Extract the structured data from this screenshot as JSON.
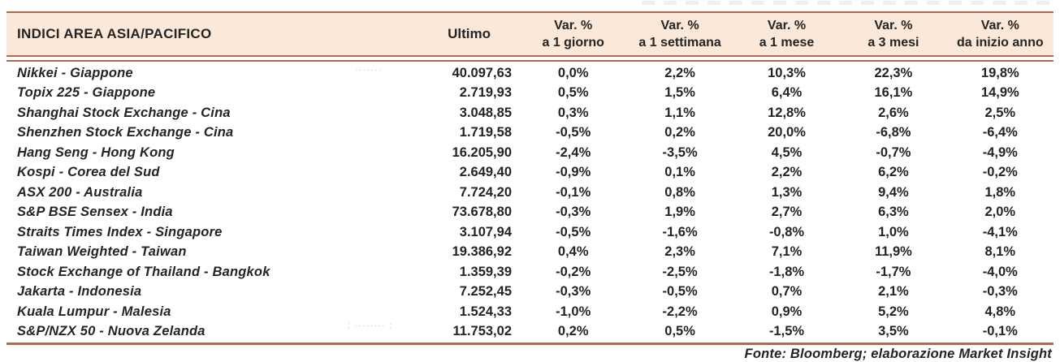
{
  "colors": {
    "accent_border": "#ad6a57",
    "header_background": "#fce8d9",
    "text": "#242424"
  },
  "table": {
    "title": "INDICI AREA ASIA/PACIFICO",
    "columns": [
      {
        "line1": "Ultimo",
        "line2": ""
      },
      {
        "line1": "Var. %",
        "line2": "a 1 giorno"
      },
      {
        "line1": "Var. %",
        "line2": "a 1 settimana"
      },
      {
        "line1": "Var. %",
        "line2": "a 1 mese"
      },
      {
        "line1": "Var. %",
        "line2": "a 3 mesi"
      },
      {
        "line1": "Var. %",
        "line2": "da inizio anno"
      }
    ],
    "rows": [
      {
        "name": "Nikkei - Giappone",
        "values": [
          "40.097,63",
          "0,0%",
          "2,2%",
          "10,3%",
          "22,3%",
          "19,8%"
        ]
      },
      {
        "name": "Topix 225 - Giappone",
        "values": [
          "2.719,93",
          "0,5%",
          "1,5%",
          "6,4%",
          "16,1%",
          "14,9%"
        ]
      },
      {
        "name": "Shanghai Stock Exchange - Cina",
        "values": [
          "3.048,85",
          "0,3%",
          "1,1%",
          "12,8%",
          "2,6%",
          "2,5%"
        ]
      },
      {
        "name": "Shenzhen Stock Exchange - Cina",
        "values": [
          "1.719,58",
          "-0,5%",
          "0,2%",
          "20,0%",
          "-6,8%",
          "-6,4%"
        ]
      },
      {
        "name": "Hang Seng - Hong Kong",
        "values": [
          "16.205,90",
          "-2,4%",
          "-3,5%",
          "4,5%",
          "-0,7%",
          "-4,9%"
        ]
      },
      {
        "name": "Kospi - Corea del Sud",
        "values": [
          "2.649,40",
          "-0,9%",
          "0,1%",
          "2,2%",
          "6,2%",
          "-0,2%"
        ]
      },
      {
        "name": "ASX 200 - Australia",
        "values": [
          "7.724,20",
          "-0,1%",
          "0,8%",
          "1,3%",
          "9,4%",
          "1,8%"
        ]
      },
      {
        "name": "S&P BSE Sensex - India",
        "values": [
          "73.678,80",
          "-0,3%",
          "1,9%",
          "2,7%",
          "6,3%",
          "2,0%"
        ]
      },
      {
        "name": "Straits Times Index - Singapore",
        "values": [
          "3.107,94",
          "-0,5%",
          "-1,6%",
          "-0,8%",
          "1,0%",
          "-4,1%"
        ]
      },
      {
        "name": "Taiwan Weighted - Taiwan",
        "values": [
          "19.386,92",
          "0,4%",
          "2,3%",
          "7,1%",
          "11,9%",
          "8,1%"
        ]
      },
      {
        "name": "Stock Exchange of Thailand - Bangkok",
        "values": [
          "1.359,39",
          "-0,2%",
          "-2,5%",
          "-1,8%",
          "-1,7%",
          "-4,0%"
        ]
      },
      {
        "name": "Jakarta - Indonesia",
        "values": [
          "7.252,45",
          "-0,3%",
          "-0,5%",
          "0,7%",
          "2,1%",
          "-0,3%"
        ]
      },
      {
        "name": "Kuala Lumpur - Malesia",
        "values": [
          "1.524,33",
          "-1,0%",
          "-2,2%",
          "0,9%",
          "5,2%",
          "4,8%"
        ]
      },
      {
        "name": "S&P/NZX 50 - Nuova Zelanda",
        "values": [
          "11.753,02",
          "0,2%",
          "0,5%",
          "-1,5%",
          "3,5%",
          "-0,1%"
        ]
      }
    ]
  },
  "footer": {
    "text": "Fonte: Bloomberg; elaborazione Market Insight"
  },
  "artifacts": {
    "row1_marks": "·······",
    "row14_marks": ": ········  :"
  }
}
